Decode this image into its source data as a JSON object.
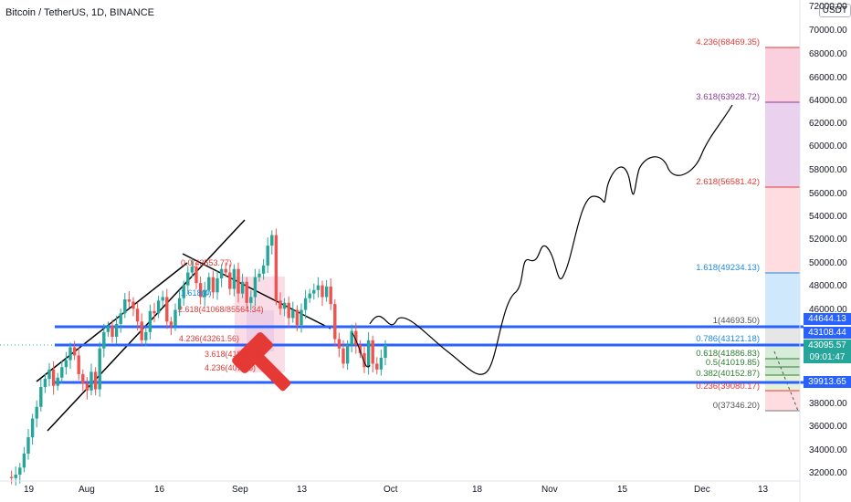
{
  "header": {
    "title": "Bitcoin / TetherUS, 1D, BINANCE",
    "currency": "USDT"
  },
  "colors": {
    "up": "#26a69a",
    "down": "#ef5350",
    "hline": "#2962ff",
    "trend": "#000000",
    "overlay_hammer": "#e53935",
    "projection": "#000000"
  },
  "price_axis": {
    "ticks": [
      "72000.00",
      "70000.00",
      "68000.00",
      "66000.00",
      "64000.00",
      "62000.00",
      "60000.00",
      "58000.00",
      "56000.00",
      "54000.00",
      "52000.00",
      "50000.00",
      "48000.00",
      "46000.00",
      "38000.00",
      "36000.00",
      "34000.00",
      "32000.00"
    ]
  },
  "price_tags": {
    "t1": "44644.13",
    "t2": "43108.44",
    "t3_price": "43095.57",
    "t3_time": "09:01:47",
    "t4": "39913.65"
  },
  "fib_labels": [
    {
      "text": "4.236(68469.35)",
      "color": "#e53935"
    },
    {
      "text": "3.618(63928.72)",
      "color": "#8e3a9a"
    },
    {
      "text": "2.618(56581.42)",
      "color": "#e53935"
    },
    {
      "text": "1.618(49234.13)",
      "color": "#1e88e5"
    },
    {
      "text": "1(44693.50)",
      "color": "#555555"
    },
    {
      "text": "0.786(43121.18)",
      "color": "#1e88e5"
    },
    {
      "text": "0.618(41886.83)",
      "color": "#2e7d32"
    },
    {
      "text": "0.5(41019.85)",
      "color": "#2e7d32"
    },
    {
      "text": "0.382(40152.87)",
      "color": "#2e7d32"
    },
    {
      "text": "0.236(39080.17)",
      "color": "#e53935"
    },
    {
      "text": "0(37346.20)",
      "color": "#555555"
    }
  ],
  "inner_fib_labels": [
    {
      "text": "2.618(41068/85564.34)",
      "color": "#e53935"
    },
    {
      "text": "4.236(43261.56)",
      "color": "#e53935"
    },
    {
      "text": "3.618(41880.46)",
      "color": "#e53935"
    },
    {
      "text": "4.236(4075.5)",
      "color": "#e53935"
    },
    {
      "text": "1.618(4)",
      "color": "#1e88e5"
    },
    {
      "text": "0.0(43553.77)",
      "color": "#e53935"
    }
  ],
  "time_axis": {
    "ticks": [
      "19",
      "Aug",
      "16",
      "Sep",
      "13",
      "Oct",
      "18",
      "Nov",
      "15",
      "Dec",
      "13"
    ]
  },
  "chart_data": {
    "type": "candlestick",
    "title": "Bitcoin / TetherUS, 1D, BINANCE",
    "xlabel": "",
    "ylabel": "",
    "ylim": [
      31000,
      73000
    ],
    "price_axis_ticks": [
      72000,
      70000,
      68000,
      66000,
      64000,
      62000,
      60000,
      58000,
      56000,
      54000,
      52000,
      50000,
      48000,
      46000,
      38000,
      36000,
      34000,
      32000
    ],
    "horizontal_lines": [
      44644.13,
      43108.44,
      39913.65
    ],
    "current_price": 43095.57,
    "ohlc_close_sequence": [
      31800,
      31700,
      32000,
      32600,
      33800,
      35200,
      36800,
      37800,
      39500,
      40200,
      41000,
      39600,
      40300,
      41200,
      41800,
      42900,
      42200,
      40600,
      39800,
      39200,
      40800,
      39300,
      42800,
      44200,
      44700,
      43800,
      44900,
      45800,
      47000,
      46800,
      46200,
      45100,
      43500,
      44200,
      46000,
      45800,
      46900,
      47200,
      45100,
      44700,
      46100,
      47100,
      48200,
      49300,
      49800,
      48400,
      47200,
      47800,
      48900,
      47600,
      48800,
      49600,
      49300,
      47900,
      49600,
      47500,
      48500,
      46700,
      47200,
      48900,
      49200,
      49900,
      51600,
      52500,
      46900,
      46200,
      46700,
      45400,
      46100,
      44800,
      46100,
      47100,
      47500,
      47800,
      48200,
      47200,
      48100,
      46600,
      43600,
      42800,
      41500,
      43100,
      44300,
      43100,
      42400,
      41200,
      43500,
      41500,
      41000,
      42000,
      43100
    ],
    "fibonacci_levels": [
      {
        "ratio": 4.236,
        "price": 68469.35
      },
      {
        "ratio": 3.618,
        "price": 63928.72
      },
      {
        "ratio": 2.618,
        "price": 56581.42
      },
      {
        "ratio": 1.618,
        "price": 49234.13
      },
      {
        "ratio": 1,
        "price": 44693.5
      },
      {
        "ratio": 0.786,
        "price": 43121.18
      },
      {
        "ratio": 0.618,
        "price": 41886.83
      },
      {
        "ratio": 0.5,
        "price": 41019.85
      },
      {
        "ratio": 0.382,
        "price": 40152.87
      },
      {
        "ratio": 0.236,
        "price": 39080.17
      },
      {
        "ratio": 0,
        "price": 37346.2
      }
    ],
    "time_ticks": [
      "19",
      "Aug",
      "16",
      "Sep",
      "13",
      "Oct",
      "18",
      "Nov",
      "15",
      "Dec",
      "13"
    ]
  }
}
